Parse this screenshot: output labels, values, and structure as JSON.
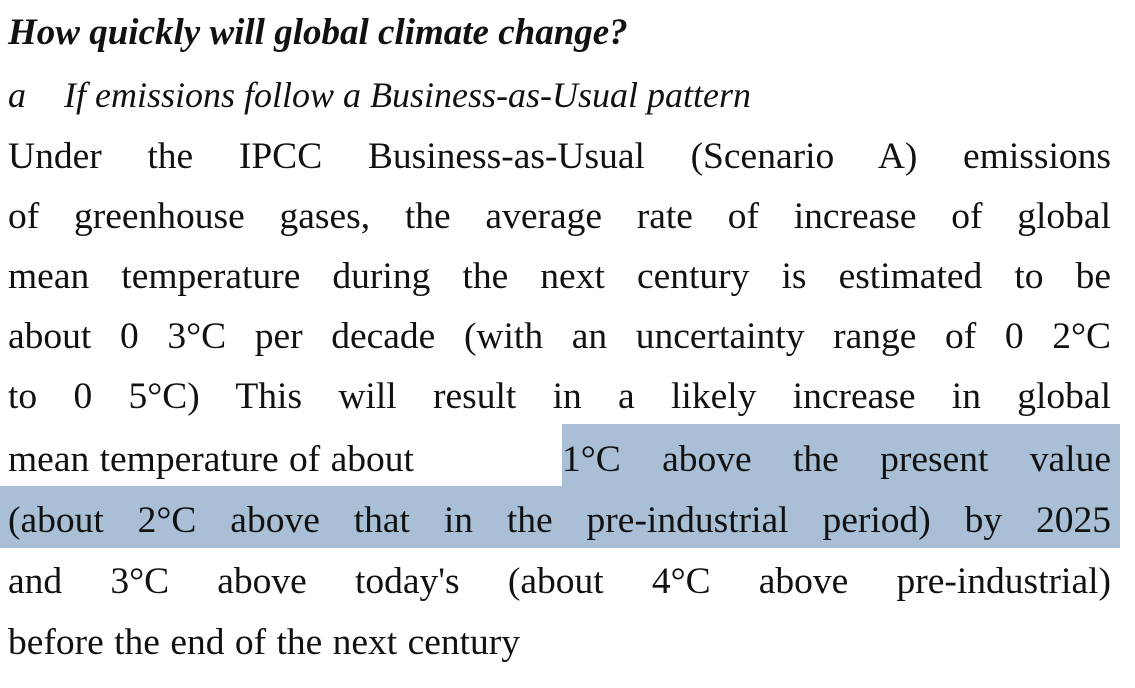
{
  "heading": "How quickly will global climate change?",
  "subheading": {
    "label": "a",
    "text": "If emissions follow a Business-as-Usual pattern"
  },
  "paragraph_lines": [
    "Under the IPCC Business-as-Usual (Scenario A) emissions",
    "of greenhouse gases, the average rate of increase of global",
    "mean temperature during the next century is estimated to be",
    "about 0 3°C per decade (with an uncertainty range of 0 2°C",
    "to 0 5°C)  This will result in a likely increase in global",
    "mean temperature of about ",
    "1°C above the present value",
    "(about 2°C above that in the pre-industrial period) by 2025",
    "and 3°C above today's (about 4°C above pre-industrial)",
    "before the end of the next century"
  ],
  "highlight_color": "#a9bfd6"
}
